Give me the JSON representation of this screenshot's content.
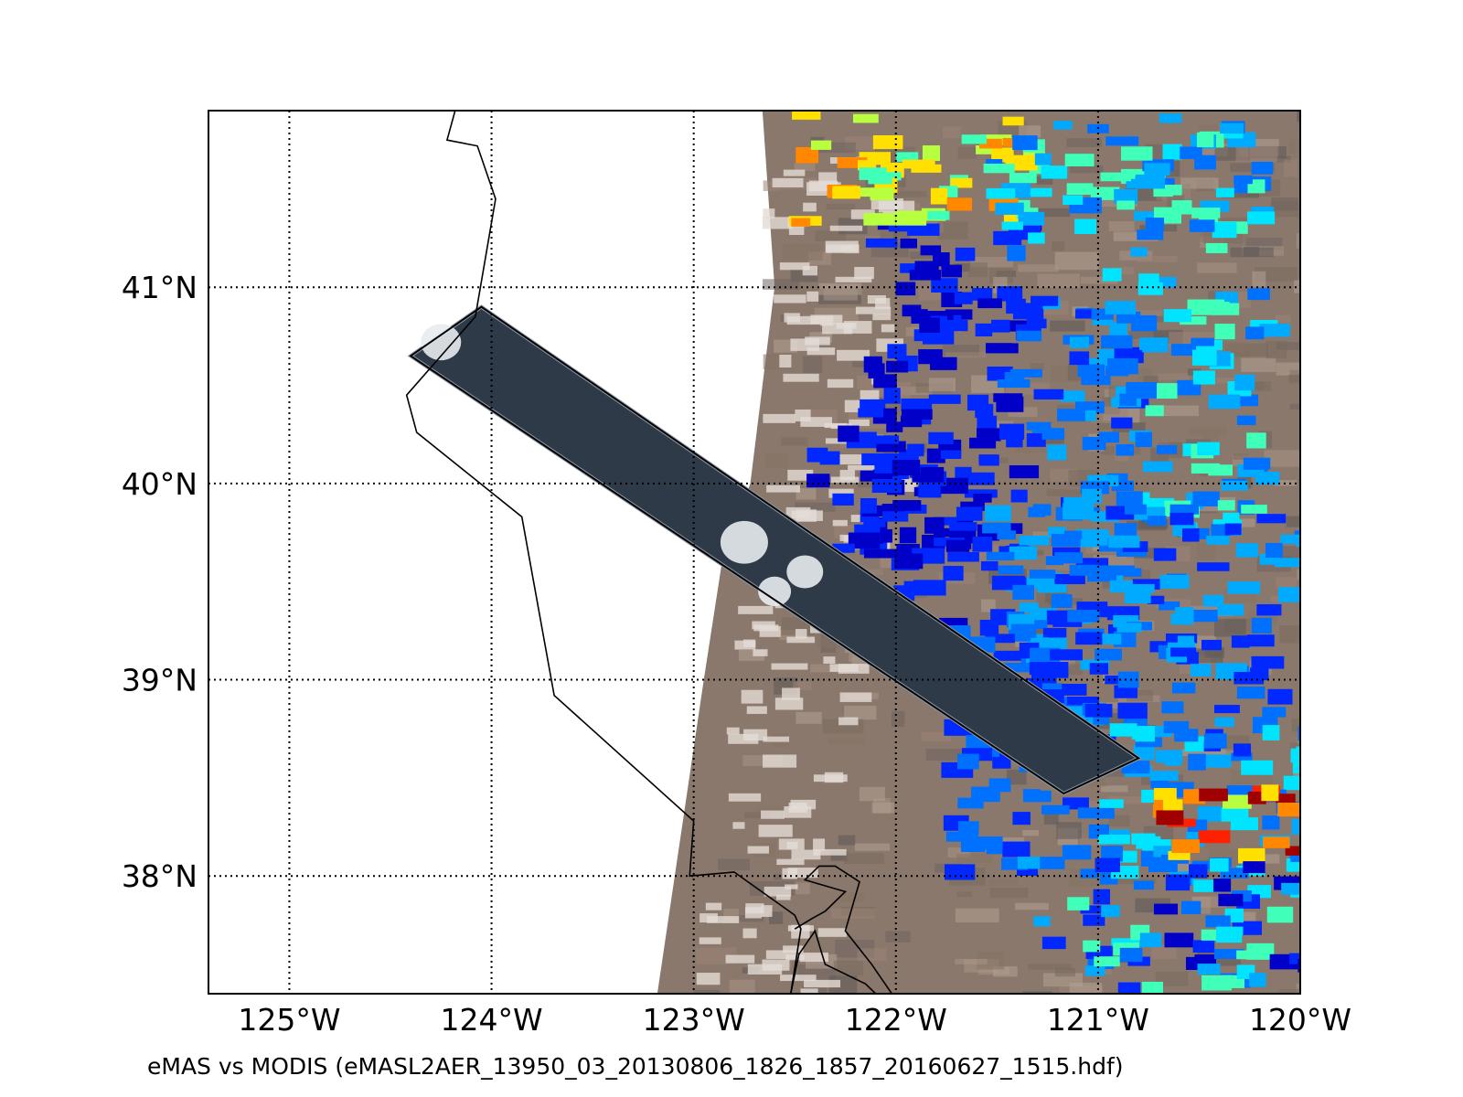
{
  "figure": {
    "caption": "eMAS vs MODIS (eMASL2AER_13950_03_20130806_1826_1857_20160627_1515.hdf)"
  },
  "map": {
    "projection": "equirectangular",
    "lon_range": [
      -125.4,
      -120.0
    ],
    "lat_range": [
      37.4,
      41.9
    ],
    "graticule_style": "dotted",
    "lon_ticks": [
      {
        "value": -125,
        "label": "125°W"
      },
      {
        "value": -124,
        "label": "124°W"
      },
      {
        "value": -123,
        "label": "123°W"
      },
      {
        "value": -122,
        "label": "122°W"
      },
      {
        "value": -121,
        "label": "121°W"
      },
      {
        "value": -120,
        "label": "120°W"
      }
    ],
    "lat_ticks": [
      {
        "value": 41,
        "label": "41°N"
      },
      {
        "value": 40,
        "label": "40°N"
      },
      {
        "value": 39,
        "label": "39°N"
      },
      {
        "value": 38,
        "label": "38°N"
      }
    ],
    "colors": {
      "ocean": "#ffffff",
      "land_base": "#8a786c",
      "cloud": "#e4dcd6",
      "track_fill": "#2e3a48",
      "outline": "#000000"
    },
    "aerosol_colorscale": [
      "#0000c8",
      "#0028ff",
      "#0070ff",
      "#00aaff",
      "#00e4ff",
      "#40ffb8",
      "#b8ff40",
      "#ffe000",
      "#ff8800",
      "#ff2000",
      "#a00000"
    ]
  }
}
